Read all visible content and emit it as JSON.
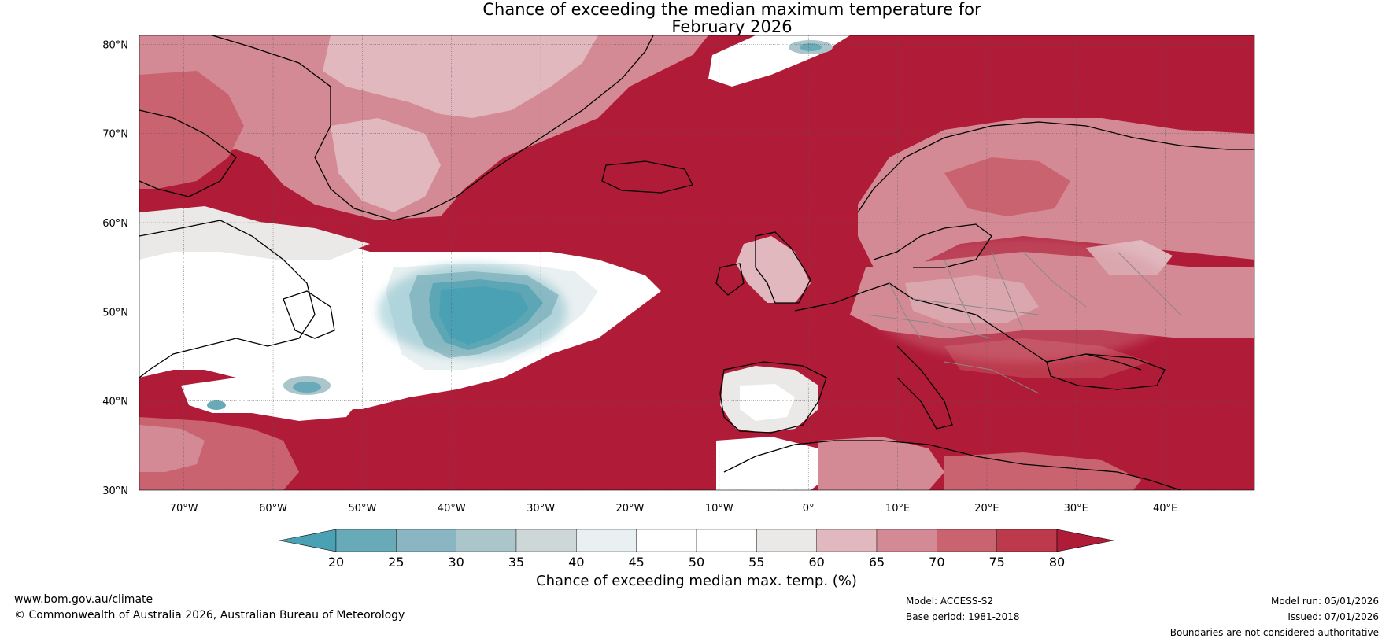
{
  "title": {
    "line1": "Chance of exceeding the median maximum temperature for",
    "line2": "February 2026"
  },
  "map": {
    "lat_labels": [
      "80°N",
      "70°N",
      "60°N",
      "50°N",
      "40°N",
      "30°N"
    ],
    "lon_labels": [
      "70°W",
      "60°W",
      "50°W",
      "40°W",
      "30°W",
      "20°W",
      "10°W",
      "0°",
      "10°E",
      "20°E",
      "30°E",
      "40°E"
    ],
    "lon_range": [
      -75,
      50
    ],
    "lat_range": [
      30,
      81
    ]
  },
  "colorbar": {
    "ticks": [
      "20",
      "25",
      "30",
      "35",
      "40",
      "45",
      "50",
      "55",
      "60",
      "65",
      "70",
      "75",
      "80"
    ],
    "colors": [
      "#4aa1b3",
      "#69aab9",
      "#8ab6c3",
      "#abc6cb",
      "#cdd7d8",
      "#e9f0f1",
      "#ffffff",
      "#ffffff",
      "#ebe8e8",
      "#e0b8be",
      "#d48a95",
      "#c96370",
      "#bd3a4d",
      "#b01b38"
    ],
    "label": "Chance of exceeding median max. temp. (%)"
  },
  "footer": {
    "website": "www.bom.gov.au/climate",
    "copyright": "© Commonwealth of Australia 2026, Australian Bureau of Meteorology",
    "model": "Model: ACCESS-S2",
    "base_period": "Base period: 1981-2018",
    "model_run": "Model run: 05/01/2026",
    "issued": "Issued: 07/01/2026",
    "disclaimer": "Boundaries are not considered authoritative"
  },
  "palette": {
    "ocean_warm": "#b01b38",
    "high": "#bd3a4d",
    "mid_high": "#c96370",
    "mid": "#d48a95",
    "low_high": "#e0b8be",
    "near_white": "#ebe8e8",
    "white": "#ffffff",
    "pale_cool": "#e9f0f1",
    "cool1": "#abc6cb",
    "cool2": "#69aab9",
    "cool3": "#4aa1b3"
  }
}
